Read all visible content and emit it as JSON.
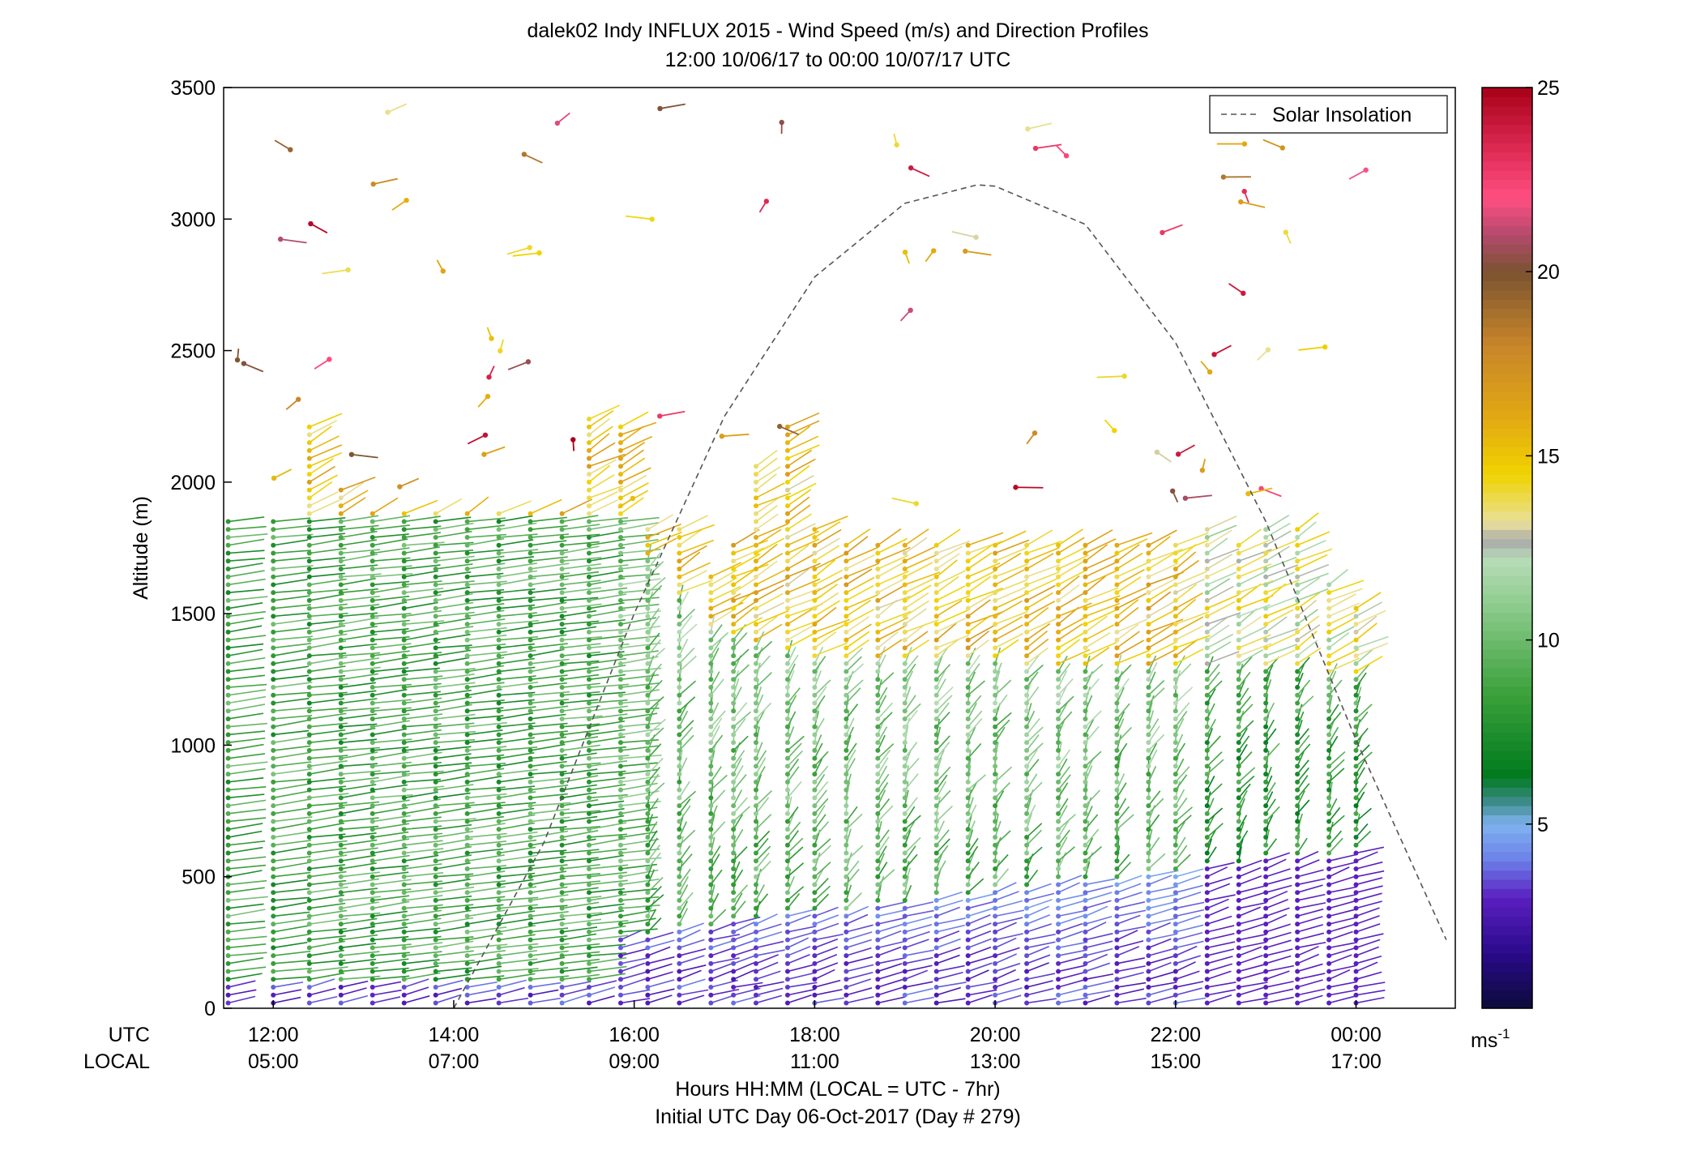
{
  "chart_data": {
    "type": "wind-barb-profile",
    "title": "dalek02 Indy INFLUX 2015 - Wind Speed (m/s) and Direction Profiles",
    "subtitle": "12:00 10/06/17 to 00:00 10/07/17  UTC",
    "ylabel": "Altitude (m)",
    "xlabel": "Hours HH:MM  (LOCAL = UTC - 7hr)",
    "xlabel2": "Initial UTC Day 06-Oct-2017 (Day # 279)",
    "ylim": [
      0,
      3500
    ],
    "xlim_hours_utc": [
      11.45,
      25.1
    ],
    "yticks": [
      0,
      500,
      1000,
      1500,
      2000,
      2500,
      3000,
      3500
    ],
    "ytick_labels": [
      "0",
      "500",
      "1000",
      "1500",
      "2000",
      "2500",
      "3000",
      "3500"
    ],
    "xticks_hours_utc": [
      12,
      14,
      16,
      18,
      20,
      22,
      24
    ],
    "xtick_labels_utc": [
      "12:00",
      "14:00",
      "16:00",
      "18:00",
      "20:00",
      "22:00",
      "00:00"
    ],
    "xtick_labels_local": [
      "05:00",
      "07:00",
      "09:00",
      "11:00",
      "13:00",
      "15:00",
      "17:00"
    ],
    "row_label_utc": "UTC",
    "row_label_local": "LOCAL",
    "legend": {
      "label": "Solar Insolation",
      "position": "top-right"
    },
    "solar_insolation_curve": {
      "x": [
        14.0,
        15.0,
        16.0,
        17.0,
        18.0,
        19.0,
        19.8,
        20.0,
        21.0,
        22.0,
        23.0,
        24.0,
        25.0
      ],
      "y": [
        0,
        630,
        1500,
        2250,
        2780,
        3060,
        3130,
        3125,
        2980,
        2530,
        1850,
        1020,
        260
      ]
    },
    "colorbar": {
      "min": 0,
      "max": 25,
      "ticks": [
        5,
        10,
        15,
        20,
        25
      ],
      "tick_labels": [
        "5",
        "10",
        "15",
        "20",
        "25"
      ],
      "unit_base": "ms",
      "unit_exp": "-1",
      "stops": [
        {
          "v": 0,
          "c": "#0b0b3a"
        },
        {
          "v": 1.5,
          "c": "#2a0a8a"
        },
        {
          "v": 3,
          "c": "#5a1fc0"
        },
        {
          "v": 4,
          "c": "#6c7ee8"
        },
        {
          "v": 5,
          "c": "#7fb2f0"
        },
        {
          "v": 5.6,
          "c": "#3d8c8c"
        },
        {
          "v": 6.3,
          "c": "#007a1e"
        },
        {
          "v": 8.5,
          "c": "#3aa03a"
        },
        {
          "v": 11,
          "c": "#8fcc8f"
        },
        {
          "v": 12.2,
          "c": "#b8dcb8"
        },
        {
          "v": 12.7,
          "c": "#aaaaaa"
        },
        {
          "v": 13.2,
          "c": "#e9e09b"
        },
        {
          "v": 14.5,
          "c": "#f0d400"
        },
        {
          "v": 16,
          "c": "#e3a912"
        },
        {
          "v": 18,
          "c": "#c8862a"
        },
        {
          "v": 20,
          "c": "#7b5331"
        },
        {
          "v": 21,
          "c": "#b34a6c"
        },
        {
          "v": 22,
          "c": "#ff4f82"
        },
        {
          "v": 23.5,
          "c": "#d8264e"
        },
        {
          "v": 25,
          "c": "#a80018"
        }
      ]
    },
    "profiles_x_hours_utc": [
      11.5,
      12.0,
      12.4,
      12.75,
      13.1,
      13.45,
      13.8,
      14.15,
      14.5,
      14.85,
      15.2,
      15.5,
      15.85,
      16.15,
      16.5,
      16.85,
      17.1,
      17.35,
      17.7,
      18.0,
      18.35,
      18.7,
      19.0,
      19.35,
      19.7,
      20.0,
      20.35,
      20.7,
      21.0,
      21.35,
      21.7,
      22.0,
      22.35,
      22.7,
      23.0,
      23.35,
      23.7,
      24.0
    ],
    "profile_tops_m": [
      1850,
      1850,
      2220,
      1990,
      1880,
      1880,
      1880,
      1880,
      1880,
      1880,
      1880,
      2260,
      2230,
      1840,
      1820,
      1660,
      1780,
      2060,
      2220,
      1820,
      1780,
      1780,
      1780,
      1780,
      1780,
      1780,
      1780,
      1780,
      1780,
      1780,
      1780,
      1780,
      1820,
      1780,
      1820,
      1820,
      1620,
      1520
    ],
    "low_level_jet_top_m": [
      1850,
      1850,
      1850,
      1850,
      1850,
      1850,
      1850,
      1850,
      1850,
      1850,
      1850,
      1850,
      1850,
      1700,
      1550,
      1450,
      1400,
      1380,
      1350,
      1330,
      1320,
      1310,
      1310,
      1310,
      1310,
      1310,
      1300,
      1300,
      1300,
      1300,
      1300,
      1300,
      1300,
      1300,
      1300,
      1300,
      1250,
      1250
    ]
  }
}
